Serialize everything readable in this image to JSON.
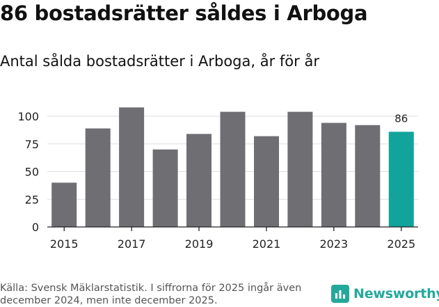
{
  "title": "86 bostadsrätter såldes i Arboga",
  "subtitle": "Antal sålda bostadsrätter i Arboga, år för år",
  "source": "Källa: Svensk Mäklarstatistik. I siffrorna för 2025 ingår även december 2024, men inte december 2025.",
  "brand": {
    "name": "Newsworthy",
    "icon": "newsworthy-logo-icon",
    "color": "#24a89c"
  },
  "colors": {
    "bar": "#6f6e73",
    "highlight": "#12a39a",
    "grid": "#dddddd",
    "axis": "#222222",
    "text": "#222222"
  },
  "chart_data": {
    "type": "bar",
    "title": "Antal sålda bostadsrätter i Arboga, år för år",
    "xlabel": "",
    "ylabel": "",
    "categories": [
      "2015",
      "2016",
      "2017",
      "2018",
      "2019",
      "2020",
      "2021",
      "2022",
      "2023",
      "2024",
      "2025"
    ],
    "values": [
      40,
      89,
      108,
      70,
      84,
      104,
      82,
      104,
      94,
      92,
      86
    ],
    "highlight_index": 10,
    "data_labels": [
      {
        "index": 10,
        "text": "86"
      }
    ],
    "x_tick_labels": [
      "2015",
      "2017",
      "2019",
      "2021",
      "2023",
      "2025"
    ],
    "yticks": [
      0,
      25,
      50,
      75,
      100
    ],
    "ylim": [
      0,
      110
    ],
    "grid": true
  }
}
